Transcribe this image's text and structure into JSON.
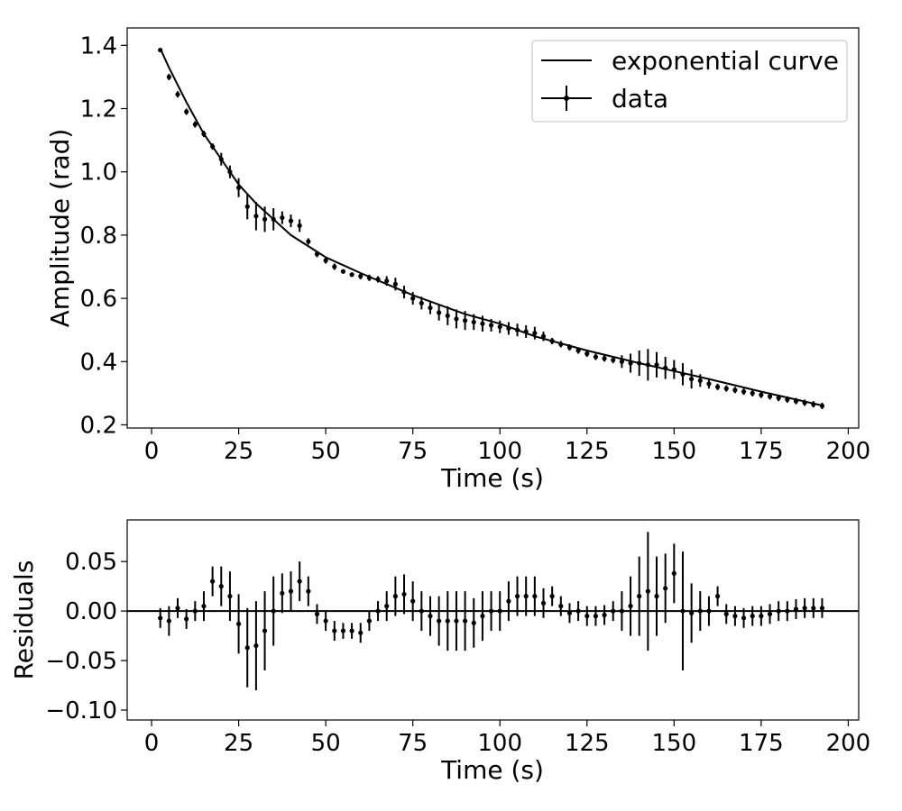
{
  "chart_data": [
    {
      "type": "scatter",
      "xlabel": "Time (s)",
      "ylabel": "Amplitude (rad)",
      "xlim": [
        -7,
        203
      ],
      "ylim": [
        0.19,
        1.455
      ],
      "xticks": [
        0,
        25,
        50,
        75,
        100,
        125,
        150,
        175,
        200
      ],
      "yticks": [
        0.2,
        0.4,
        0.6,
        0.8,
        1.0,
        1.2,
        1.4
      ],
      "ytick_labels": [
        "0.2",
        "0.4",
        "0.6",
        "0.8",
        "1.0",
        "1.2",
        "1.4"
      ],
      "legend": {
        "placement": "top-right",
        "entries": [
          "exponential curve",
          "data"
        ]
      },
      "colors": {
        "line": "#000000",
        "points": "#000000"
      },
      "series": [
        {
          "name": "exponential curve",
          "style": "line",
          "x": [
            2.5,
            5,
            10,
            15,
            20,
            25,
            30,
            40,
            50,
            60,
            75,
            90,
            100,
            110,
            125,
            140,
            150,
            160,
            175,
            193
          ],
          "y": [
            1.39,
            1.33,
            1.22,
            1.12,
            1.04,
            0.96,
            0.9,
            0.8,
            0.73,
            0.68,
            0.61,
            0.55,
            0.52,
            0.48,
            0.435,
            0.395,
            0.37,
            0.345,
            0.305,
            0.26
          ]
        },
        {
          "name": "data",
          "style": "errorbar",
          "x": [
            2.5,
            5,
            7.5,
            10,
            12.5,
            15,
            17.5,
            20,
            22.5,
            25,
            27.5,
            30,
            32.5,
            35,
            37.5,
            40,
            42.5,
            45,
            47.5,
            50,
            52.5,
            55,
            57.5,
            60,
            62.5,
            65,
            67.5,
            70,
            72.5,
            75,
            77.5,
            80,
            82.5,
            85,
            87.5,
            90,
            92.5,
            95,
            97.5,
            100,
            102.5,
            105,
            107.5,
            110,
            112.5,
            115,
            117.5,
            120,
            122.5,
            125,
            127.5,
            130,
            132.5,
            135,
            137.5,
            140,
            142.5,
            145,
            147.5,
            150,
            152.5,
            155,
            157.5,
            160,
            162.5,
            165,
            167.5,
            170,
            172.5,
            175,
            177.5,
            180,
            182.5,
            185,
            187.5,
            190,
            192.5
          ],
          "y": [
            1.385,
            1.3,
            1.245,
            1.19,
            1.15,
            1.12,
            1.08,
            1.04,
            1.0,
            0.95,
            0.89,
            0.86,
            0.85,
            0.85,
            0.855,
            0.845,
            0.83,
            0.78,
            0.74,
            0.72,
            0.7,
            0.685,
            0.675,
            0.67,
            0.665,
            0.66,
            0.655,
            0.645,
            0.62,
            0.6,
            0.585,
            0.57,
            0.555,
            0.545,
            0.535,
            0.53,
            0.525,
            0.52,
            0.515,
            0.51,
            0.505,
            0.5,
            0.495,
            0.49,
            0.48,
            0.465,
            0.455,
            0.445,
            0.435,
            0.425,
            0.415,
            0.41,
            0.405,
            0.4,
            0.395,
            0.395,
            0.39,
            0.39,
            0.38,
            0.375,
            0.36,
            0.345,
            0.34,
            0.33,
            0.32,
            0.315,
            0.31,
            0.305,
            0.3,
            0.295,
            0.29,
            0.285,
            0.28,
            0.275,
            0.27,
            0.265,
            0.26
          ],
          "yerr": [
            0.005,
            0.01,
            0.01,
            0.01,
            0.01,
            0.01,
            0.01,
            0.02,
            0.02,
            0.03,
            0.04,
            0.045,
            0.04,
            0.035,
            0.02,
            0.02,
            0.02,
            0.01,
            0.01,
            0.01,
            0.01,
            0.005,
            0.005,
            0.01,
            0.01,
            0.01,
            0.015,
            0.02,
            0.02,
            0.02,
            0.02,
            0.02,
            0.025,
            0.03,
            0.03,
            0.03,
            0.025,
            0.025,
            0.02,
            0.02,
            0.02,
            0.02,
            0.02,
            0.02,
            0.015,
            0.01,
            0.01,
            0.01,
            0.01,
            0.01,
            0.01,
            0.01,
            0.01,
            0.02,
            0.03,
            0.04,
            0.05,
            0.04,
            0.035,
            0.03,
            0.035,
            0.03,
            0.02,
            0.015,
            0.01,
            0.01,
            0.01,
            0.01,
            0.01,
            0.01,
            0.01,
            0.01,
            0.01,
            0.01,
            0.01,
            0.01,
            0.01
          ]
        }
      ]
    },
    {
      "type": "scatter",
      "xlabel": "Time (s)",
      "ylabel": "Residuals",
      "xlim": [
        -7,
        203
      ],
      "ylim": [
        -0.11,
        0.092
      ],
      "xticks": [
        0,
        25,
        50,
        75,
        100,
        125,
        150,
        175,
        200
      ],
      "yticks": [
        -0.1,
        -0.05,
        0.0,
        0.05
      ],
      "ytick_labels": [
        "−0.10",
        "−0.05",
        "0.00",
        "0.05"
      ],
      "reference_line": 0,
      "colors": {
        "line": "#000000",
        "points": "#000000"
      },
      "series": [
        {
          "style": "errorbar",
          "x": [
            2.5,
            5,
            7.5,
            10,
            12.5,
            15,
            17.5,
            20,
            22.5,
            25,
            27.5,
            30,
            32.5,
            35,
            37.5,
            40,
            42.5,
            45,
            47.5,
            50,
            52.5,
            55,
            57.5,
            60,
            62.5,
            65,
            67.5,
            70,
            72.5,
            75,
            77.5,
            80,
            82.5,
            85,
            87.5,
            90,
            92.5,
            95,
            97.5,
            100,
            102.5,
            105,
            107.5,
            110,
            112.5,
            115,
            117.5,
            120,
            122.5,
            125,
            127.5,
            130,
            132.5,
            135,
            137.5,
            140,
            142.5,
            145,
            147.5,
            150,
            152.5,
            155,
            157.5,
            160,
            162.5,
            165,
            167.5,
            170,
            172.5,
            175,
            177.5,
            180,
            182.5,
            185,
            187.5,
            190,
            192.5
          ],
          "y": [
            -0.007,
            -0.01,
            0.003,
            -0.008,
            0.0,
            0.005,
            0.03,
            0.025,
            0.015,
            -0.013,
            -0.037,
            -0.035,
            -0.02,
            0.0,
            0.018,
            0.02,
            0.03,
            0.02,
            -0.003,
            -0.01,
            -0.02,
            -0.02,
            -0.02,
            -0.022,
            -0.01,
            0.0,
            0.005,
            0.015,
            0.017,
            0.01,
            0.0,
            -0.005,
            -0.01,
            -0.01,
            -0.01,
            -0.01,
            -0.012,
            -0.005,
            0.0,
            0.0,
            0.01,
            0.015,
            0.015,
            0.015,
            0.008,
            0.015,
            0.005,
            -0.002,
            0.0,
            -0.005,
            -0.005,
            -0.004,
            0.0,
            0.0,
            0.005,
            0.015,
            0.02,
            0.015,
            0.023,
            0.038,
            0.0,
            -0.002,
            0.0,
            0.0,
            0.015,
            -0.003,
            -0.005,
            -0.007,
            -0.005,
            -0.005,
            -0.003,
            0.0,
            0.0,
            0.002,
            0.003,
            0.003,
            0.003
          ],
          "yerr": [
            0.01,
            0.015,
            0.01,
            0.01,
            0.01,
            0.015,
            0.015,
            0.02,
            0.025,
            0.03,
            0.04,
            0.045,
            0.04,
            0.035,
            0.02,
            0.02,
            0.02,
            0.015,
            0.01,
            0.01,
            0.01,
            0.008,
            0.008,
            0.01,
            0.01,
            0.01,
            0.015,
            0.02,
            0.02,
            0.02,
            0.02,
            0.02,
            0.025,
            0.03,
            0.03,
            0.03,
            0.025,
            0.025,
            0.02,
            0.02,
            0.02,
            0.02,
            0.02,
            0.02,
            0.015,
            0.01,
            0.01,
            0.01,
            0.01,
            0.01,
            0.01,
            0.01,
            0.01,
            0.02,
            0.03,
            0.04,
            0.06,
            0.04,
            0.035,
            0.03,
            0.06,
            0.03,
            0.02,
            0.015,
            0.01,
            0.01,
            0.01,
            0.01,
            0.01,
            0.01,
            0.01,
            0.01,
            0.01,
            0.01,
            0.01,
            0.01,
            0.01
          ]
        }
      ]
    }
  ]
}
